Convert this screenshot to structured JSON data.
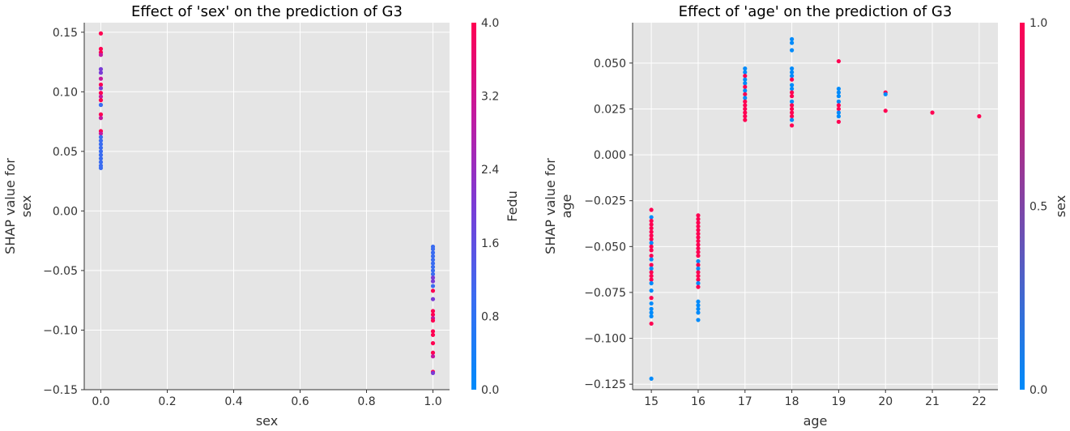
{
  "chart_data": [
    {
      "type": "scatter",
      "title": "Effect of 'sex' on the prediction of G3",
      "xlabel": "sex",
      "ylabel": [
        "SHAP value for",
        "sex"
      ],
      "xlim": [
        -0.05,
        1.05
      ],
      "ylim": [
        -0.15,
        0.158
      ],
      "xticks": [
        0.0,
        0.2,
        0.4,
        0.6,
        0.8,
        1.0
      ],
      "xtick_labels": [
        "0.0",
        "0.2",
        "0.4",
        "0.6",
        "0.8",
        "1.0"
      ],
      "yticks": [
        -0.15,
        -0.1,
        -0.05,
        0.0,
        0.05,
        0.1,
        0.15
      ],
      "ytick_labels": [
        "−0.15",
        "−0.10",
        "−0.05",
        "0.00",
        "0.05",
        "0.10",
        "0.15"
      ],
      "grid": true,
      "colorbar": {
        "label": "Fedu",
        "range": [
          0.0,
          4.0
        ],
        "ticks": [
          0.0,
          0.8,
          1.6,
          2.4,
          3.2,
          4.0
        ],
        "tick_labels": [
          "0.0",
          "0.8",
          "1.6",
          "2.4",
          "3.2",
          "4.0"
        ],
        "colors": [
          "#008bfb",
          "#3a6cf1",
          "#7a3cd6",
          "#c21a9f",
          "#ff0052"
        ]
      },
      "points": [
        {
          "x": 0,
          "y": 0.149,
          "c": 4
        },
        {
          "x": 0,
          "y": 0.136,
          "c": 4
        },
        {
          "x": 0,
          "y": 0.133,
          "c": 4
        },
        {
          "x": 0,
          "y": 0.131,
          "c": 3
        },
        {
          "x": 0,
          "y": 0.119,
          "c": 2
        },
        {
          "x": 0,
          "y": 0.116,
          "c": 2
        },
        {
          "x": 0,
          "y": 0.111,
          "c": 3
        },
        {
          "x": 0,
          "y": 0.106,
          "c": 4
        },
        {
          "x": 0,
          "y": 0.103,
          "c": 2
        },
        {
          "x": 0,
          "y": 0.099,
          "c": 4
        },
        {
          "x": 0,
          "y": 0.096,
          "c": 3
        },
        {
          "x": 0,
          "y": 0.093,
          "c": 4
        },
        {
          "x": 0,
          "y": 0.089,
          "c": 1
        },
        {
          "x": 0,
          "y": 0.081,
          "c": 4
        },
        {
          "x": 0,
          "y": 0.078,
          "c": 3
        },
        {
          "x": 0,
          "y": 0.067,
          "c": 4
        },
        {
          "x": 0,
          "y": 0.065,
          "c": 3
        },
        {
          "x": 0,
          "y": 0.062,
          "c": 1
        },
        {
          "x": 0,
          "y": 0.059,
          "c": 1
        },
        {
          "x": 0,
          "y": 0.056,
          "c": 1
        },
        {
          "x": 0,
          "y": 0.053,
          "c": 1
        },
        {
          "x": 0,
          "y": 0.05,
          "c": 1
        },
        {
          "x": 0,
          "y": 0.047,
          "c": 1
        },
        {
          "x": 0,
          "y": 0.044,
          "c": 1
        },
        {
          "x": 0,
          "y": 0.041,
          "c": 1
        },
        {
          "x": 0,
          "y": 0.038,
          "c": 1
        },
        {
          "x": 0,
          "y": 0.036,
          "c": 1
        },
        {
          "x": 1,
          "y": -0.03,
          "c": 1
        },
        {
          "x": 1,
          "y": -0.032,
          "c": 1
        },
        {
          "x": 1,
          "y": -0.035,
          "c": 1
        },
        {
          "x": 1,
          "y": -0.038,
          "c": 1
        },
        {
          "x": 1,
          "y": -0.041,
          "c": 1
        },
        {
          "x": 1,
          "y": -0.044,
          "c": 1
        },
        {
          "x": 1,
          "y": -0.047,
          "c": 1
        },
        {
          "x": 1,
          "y": -0.05,
          "c": 1
        },
        {
          "x": 1,
          "y": -0.053,
          "c": 1
        },
        {
          "x": 1,
          "y": -0.056,
          "c": 2
        },
        {
          "x": 1,
          "y": -0.059,
          "c": 2
        },
        {
          "x": 1,
          "y": -0.063,
          "c": 1
        },
        {
          "x": 1,
          "y": -0.067,
          "c": 4
        },
        {
          "x": 1,
          "y": -0.074,
          "c": 2
        },
        {
          "x": 1,
          "y": -0.084,
          "c": 4
        },
        {
          "x": 1,
          "y": -0.087,
          "c": 4
        },
        {
          "x": 1,
          "y": -0.09,
          "c": 3
        },
        {
          "x": 1,
          "y": -0.092,
          "c": 4
        },
        {
          "x": 1,
          "y": -0.101,
          "c": 4
        },
        {
          "x": 1,
          "y": -0.104,
          "c": 4
        },
        {
          "x": 1,
          "y": -0.111,
          "c": 4
        },
        {
          "x": 1,
          "y": -0.119,
          "c": 4
        },
        {
          "x": 1,
          "y": -0.122,
          "c": 3
        },
        {
          "x": 1,
          "y": -0.135,
          "c": 4
        },
        {
          "x": 1,
          "y": -0.136,
          "c": 2
        }
      ]
    },
    {
      "type": "scatter",
      "title": "Effect of 'age' on the prediction of G3",
      "xlabel": "age",
      "ylabel": [
        "SHAP value for",
        "age"
      ],
      "xlim": [
        14.6,
        22.4
      ],
      "ylim": [
        -0.128,
        0.072
      ],
      "xticks": [
        15,
        16,
        17,
        18,
        19,
        20,
        21,
        22
      ],
      "xtick_labels": [
        "15",
        "16",
        "17",
        "18",
        "19",
        "20",
        "21",
        "22"
      ],
      "yticks": [
        -0.125,
        -0.1,
        -0.075,
        -0.05,
        -0.025,
        0.0,
        0.025,
        0.05
      ],
      "ytick_labels": [
        "−0.125",
        "−0.100",
        "−0.075",
        "−0.050",
        "−0.025",
        "0.000",
        "0.025",
        "0.050"
      ],
      "grid": true,
      "colorbar": {
        "label": "sex",
        "range": [
          0.0,
          1.0
        ],
        "ticks": [
          0.0,
          0.5,
          1.0
        ],
        "tick_labels": [
          "0.0",
          "0.5",
          "1.0"
        ],
        "colors": [
          "#008bfb",
          "#ff0052"
        ]
      },
      "points": [
        {
          "x": 15,
          "y": -0.03,
          "c": 1
        },
        {
          "x": 15,
          "y": -0.034,
          "c": 0
        },
        {
          "x": 15,
          "y": -0.036,
          "c": 1
        },
        {
          "x": 15,
          "y": -0.038,
          "c": 1
        },
        {
          "x": 15,
          "y": -0.04,
          "c": 1
        },
        {
          "x": 15,
          "y": -0.042,
          "c": 1
        },
        {
          "x": 15,
          "y": -0.044,
          "c": 1
        },
        {
          "x": 15,
          "y": -0.046,
          "c": 1
        },
        {
          "x": 15,
          "y": -0.048,
          "c": 0
        },
        {
          "x": 15,
          "y": -0.05,
          "c": 1
        },
        {
          "x": 15,
          "y": -0.052,
          "c": 1
        },
        {
          "x": 15,
          "y": -0.055,
          "c": 1
        },
        {
          "x": 15,
          "y": -0.057,
          "c": 0
        },
        {
          "x": 15,
          "y": -0.06,
          "c": 1
        },
        {
          "x": 15,
          "y": -0.062,
          "c": 0
        },
        {
          "x": 15,
          "y": -0.064,
          "c": 1
        },
        {
          "x": 15,
          "y": -0.066,
          "c": 1
        },
        {
          "x": 15,
          "y": -0.068,
          "c": 1
        },
        {
          "x": 15,
          "y": -0.07,
          "c": 0
        },
        {
          "x": 15,
          "y": -0.074,
          "c": 0
        },
        {
          "x": 15,
          "y": -0.078,
          "c": 1
        },
        {
          "x": 15,
          "y": -0.081,
          "c": 0
        },
        {
          "x": 15,
          "y": -0.084,
          "c": 0
        },
        {
          "x": 15,
          "y": -0.086,
          "c": 0
        },
        {
          "x": 15,
          "y": -0.088,
          "c": 0
        },
        {
          "x": 15,
          "y": -0.092,
          "c": 1
        },
        {
          "x": 15,
          "y": -0.122,
          "c": 0
        },
        {
          "x": 16,
          "y": -0.033,
          "c": 1
        },
        {
          "x": 16,
          "y": -0.035,
          "c": 1
        },
        {
          "x": 16,
          "y": -0.037,
          "c": 1
        },
        {
          "x": 16,
          "y": -0.039,
          "c": 1
        },
        {
          "x": 16,
          "y": -0.041,
          "c": 1
        },
        {
          "x": 16,
          "y": -0.043,
          "c": 1
        },
        {
          "x": 16,
          "y": -0.045,
          "c": 1
        },
        {
          "x": 16,
          "y": -0.047,
          "c": 1
        },
        {
          "x": 16,
          "y": -0.049,
          "c": 1
        },
        {
          "x": 16,
          "y": -0.051,
          "c": 1
        },
        {
          "x": 16,
          "y": -0.053,
          "c": 1
        },
        {
          "x": 16,
          "y": -0.055,
          "c": 1
        },
        {
          "x": 16,
          "y": -0.058,
          "c": 0
        },
        {
          "x": 16,
          "y": -0.06,
          "c": 1
        },
        {
          "x": 16,
          "y": -0.062,
          "c": 0
        },
        {
          "x": 16,
          "y": -0.064,
          "c": 1
        },
        {
          "x": 16,
          "y": -0.066,
          "c": 1
        },
        {
          "x": 16,
          "y": -0.068,
          "c": 1
        },
        {
          "x": 16,
          "y": -0.07,
          "c": 0
        },
        {
          "x": 16,
          "y": -0.072,
          "c": 1
        },
        {
          "x": 16,
          "y": -0.08,
          "c": 0
        },
        {
          "x": 16,
          "y": -0.082,
          "c": 0
        },
        {
          "x": 16,
          "y": -0.084,
          "c": 0
        },
        {
          "x": 16,
          "y": -0.086,
          "c": 0
        },
        {
          "x": 16,
          "y": -0.09,
          "c": 0
        },
        {
          "x": 17,
          "y": 0.047,
          "c": 0
        },
        {
          "x": 17,
          "y": 0.045,
          "c": 0
        },
        {
          "x": 17,
          "y": 0.043,
          "c": 1
        },
        {
          "x": 17,
          "y": 0.041,
          "c": 0
        },
        {
          "x": 17,
          "y": 0.039,
          "c": 0
        },
        {
          "x": 17,
          "y": 0.037,
          "c": 1
        },
        {
          "x": 17,
          "y": 0.035,
          "c": 0
        },
        {
          "x": 17,
          "y": 0.033,
          "c": 1
        },
        {
          "x": 17,
          "y": 0.031,
          "c": 0
        },
        {
          "x": 17,
          "y": 0.029,
          "c": 1
        },
        {
          "x": 17,
          "y": 0.027,
          "c": 1
        },
        {
          "x": 17,
          "y": 0.025,
          "c": 1
        },
        {
          "x": 17,
          "y": 0.023,
          "c": 1
        },
        {
          "x": 17,
          "y": 0.021,
          "c": 1
        },
        {
          "x": 17,
          "y": 0.019,
          "c": 1
        },
        {
          "x": 18,
          "y": 0.063,
          "c": 0
        },
        {
          "x": 18,
          "y": 0.061,
          "c": 0
        },
        {
          "x": 18,
          "y": 0.057,
          "c": 0
        },
        {
          "x": 18,
          "y": 0.047,
          "c": 0
        },
        {
          "x": 18,
          "y": 0.045,
          "c": 0
        },
        {
          "x": 18,
          "y": 0.043,
          "c": 0
        },
        {
          "x": 18,
          "y": 0.041,
          "c": 1
        },
        {
          "x": 18,
          "y": 0.038,
          "c": 0
        },
        {
          "x": 18,
          "y": 0.036,
          "c": 0
        },
        {
          "x": 18,
          "y": 0.034,
          "c": 1
        },
        {
          "x": 18,
          "y": 0.032,
          "c": 1
        },
        {
          "x": 18,
          "y": 0.029,
          "c": 0
        },
        {
          "x": 18,
          "y": 0.027,
          "c": 1
        },
        {
          "x": 18,
          "y": 0.025,
          "c": 1
        },
        {
          "x": 18,
          "y": 0.023,
          "c": 1
        },
        {
          "x": 18,
          "y": 0.021,
          "c": 1
        },
        {
          "x": 18,
          "y": 0.019,
          "c": 0
        },
        {
          "x": 18,
          "y": 0.016,
          "c": 1
        },
        {
          "x": 19,
          "y": 0.051,
          "c": 1
        },
        {
          "x": 19,
          "y": 0.036,
          "c": 0
        },
        {
          "x": 19,
          "y": 0.034,
          "c": 0
        },
        {
          "x": 19,
          "y": 0.032,
          "c": 0
        },
        {
          "x": 19,
          "y": 0.029,
          "c": 0
        },
        {
          "x": 19,
          "y": 0.027,
          "c": 1
        },
        {
          "x": 19,
          "y": 0.025,
          "c": 1
        },
        {
          "x": 19,
          "y": 0.023,
          "c": 0
        },
        {
          "x": 19,
          "y": 0.021,
          "c": 0
        },
        {
          "x": 19,
          "y": 0.018,
          "c": 1
        },
        {
          "x": 20,
          "y": 0.034,
          "c": 1
        },
        {
          "x": 20,
          "y": 0.033,
          "c": 0
        },
        {
          "x": 20,
          "y": 0.024,
          "c": 1
        },
        {
          "x": 21,
          "y": 0.023,
          "c": 1
        },
        {
          "x": 22,
          "y": 0.021,
          "c": 1
        }
      ]
    }
  ]
}
